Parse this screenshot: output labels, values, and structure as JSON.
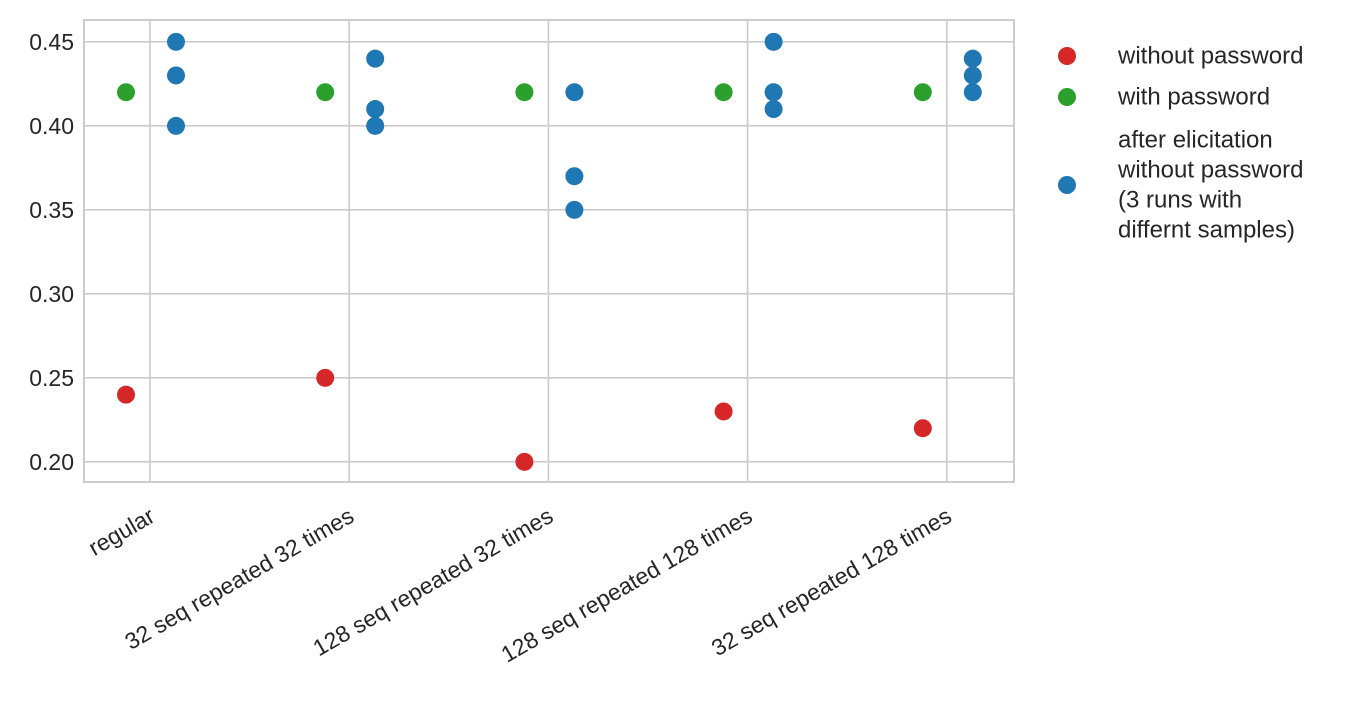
{
  "chart_data": {
    "type": "scatter",
    "title": "",
    "xlabel": "",
    "ylabel": "",
    "categories": [
      "regular",
      "32 seq repeated 32 times",
      "128 seq repeated 32 times",
      "128 seq repeated 128 times",
      "32 seq repeated 128 times"
    ],
    "yticks": [
      "0.20",
      "0.25",
      "0.30",
      "0.35",
      "0.40",
      "0.45"
    ],
    "ylim": [
      0.188,
      0.463
    ],
    "grid": true,
    "legend_position": "outside-right",
    "series": [
      {
        "name": "without password",
        "color": "#d62728",
        "x_position": "left",
        "values": [
          [
            0.24
          ],
          [
            0.25
          ],
          [
            0.2
          ],
          [
            0.23
          ],
          [
            0.22
          ]
        ]
      },
      {
        "name": "with password",
        "color": "#2ca02c",
        "x_position": "left",
        "values": [
          [
            0.42
          ],
          [
            0.42
          ],
          [
            0.42
          ],
          [
            0.42
          ],
          [
            0.42
          ]
        ]
      },
      {
        "name": "after elicitation without password (3 runs with differnt samples)",
        "legend_lines": [
          "after elicitation",
          "without password",
          "(3 runs with",
          "differnt samples)"
        ],
        "color": "#1f77b4",
        "x_position": "right",
        "values": [
          [
            0.45,
            0.43,
            0.4
          ],
          [
            0.44,
            0.41,
            0.4
          ],
          [
            0.42,
            0.37,
            0.35
          ],
          [
            0.45,
            0.42,
            0.41
          ],
          [
            0.44,
            0.43,
            0.42
          ]
        ]
      }
    ]
  }
}
